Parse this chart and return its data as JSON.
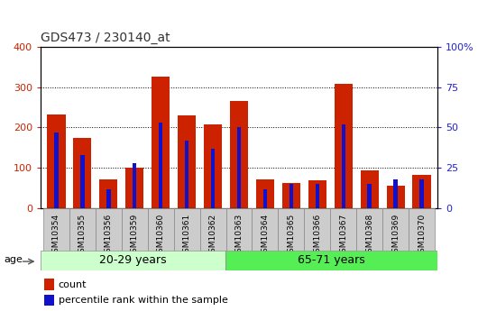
{
  "title": "GDS473 / 230140_at",
  "categories": [
    "GSM10354",
    "GSM10355",
    "GSM10356",
    "GSM10359",
    "GSM10360",
    "GSM10361",
    "GSM10362",
    "GSM10363",
    "GSM10364",
    "GSM10365",
    "GSM10366",
    "GSM10367",
    "GSM10368",
    "GSM10369",
    "GSM10370"
  ],
  "count_values": [
    232,
    175,
    72,
    100,
    325,
    230,
    207,
    265,
    72,
    63,
    70,
    308,
    95,
    57,
    82
  ],
  "percentile_values": [
    47,
    33,
    12,
    28,
    53,
    42,
    37,
    50,
    12,
    15,
    15,
    52,
    15,
    18,
    18
  ],
  "group1_label": "20-29 years",
  "group2_label": "65-71 years",
  "group1_count": 7,
  "group2_count": 8,
  "age_label": "age",
  "left_ylim": [
    0,
    400
  ],
  "right_ylim": [
    0,
    100
  ],
  "left_yticks": [
    0,
    100,
    200,
    300,
    400
  ],
  "right_yticks": [
    0,
    25,
    50,
    75,
    100
  ],
  "right_yticklabels": [
    "0",
    "25",
    "50",
    "75",
    "100%"
  ],
  "bar_color_red": "#cc2200",
  "bar_color_blue": "#1111cc",
  "group1_bg": "#ccffcc",
  "group2_bg": "#55ee55",
  "tick_bg": "#cccccc",
  "legend_red_label": "count",
  "legend_blue_label": "percentile rank within the sample",
  "title_color": "#333333",
  "left_tick_color": "#cc2200",
  "right_tick_color": "#2222cc",
  "bg_color": "#ffffff"
}
